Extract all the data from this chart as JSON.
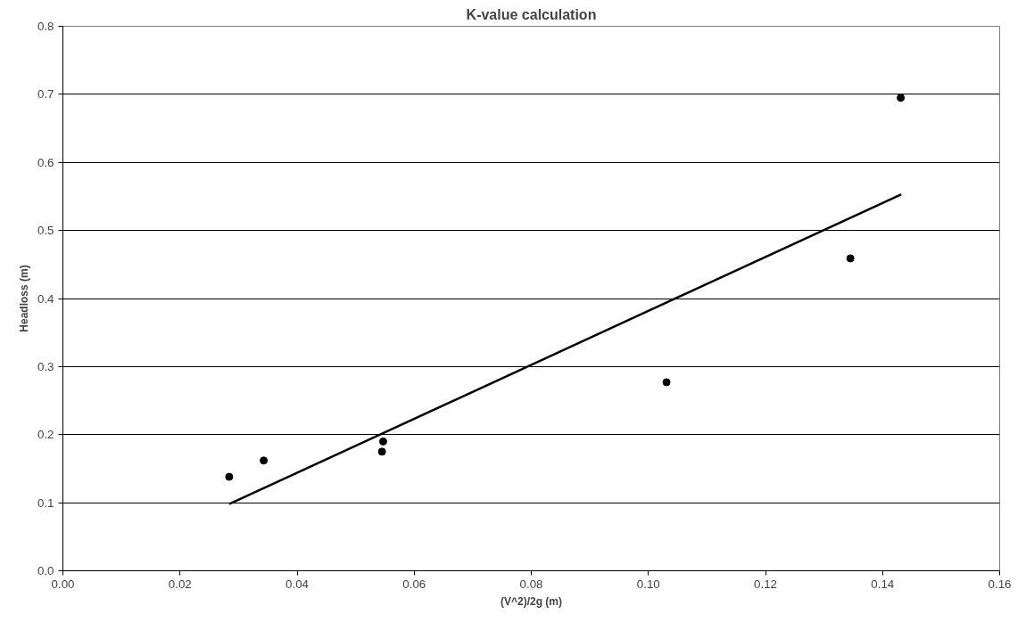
{
  "chart_data": {
    "type": "scatter",
    "title": "K-value calculation",
    "xlabel": "(V^2)/2g (m)",
    "ylabel": "Headloss (m)",
    "xlim": [
      0,
      0.16
    ],
    "xticks": [
      {
        "value": 0,
        "label": "0.00"
      },
      {
        "value": 0.02,
        "label": "0.02"
      },
      {
        "value": 0.04,
        "label": "0.04"
      },
      {
        "value": 0.06,
        "label": "0.06"
      },
      {
        "value": 0.08,
        "label": "0.08"
      },
      {
        "value": 0.1,
        "label": "0.10"
      },
      {
        "value": 0.12,
        "label": "0.12"
      },
      {
        "value": 0.14,
        "label": "0.14"
      },
      {
        "value": 0.16,
        "label": "0.16"
      }
    ],
    "ylim": [
      0,
      0.8
    ],
    "yticks": [
      {
        "value": 0,
        "label": "0.0"
      },
      0.1,
      0.2,
      0.3,
      0.4,
      0.5,
      0.6,
      0.7,
      0.8
    ],
    "grid": "y",
    "series": [
      {
        "marker": "circle",
        "color": "#000000",
        "x": [
          0.0284,
          0.0343,
          0.0547,
          0.0545,
          0.1031,
          0.1345,
          0.1431
        ],
        "values": [
          0.138,
          0.162,
          0.19,
          0.175,
          0.277,
          0.459,
          0.695
        ]
      },
      {
        "type": "line",
        "color": "#000000",
        "x": [
          0.0284,
          0.1432
        ],
        "values": [
          0.098,
          0.553
        ]
      }
    ]
  }
}
